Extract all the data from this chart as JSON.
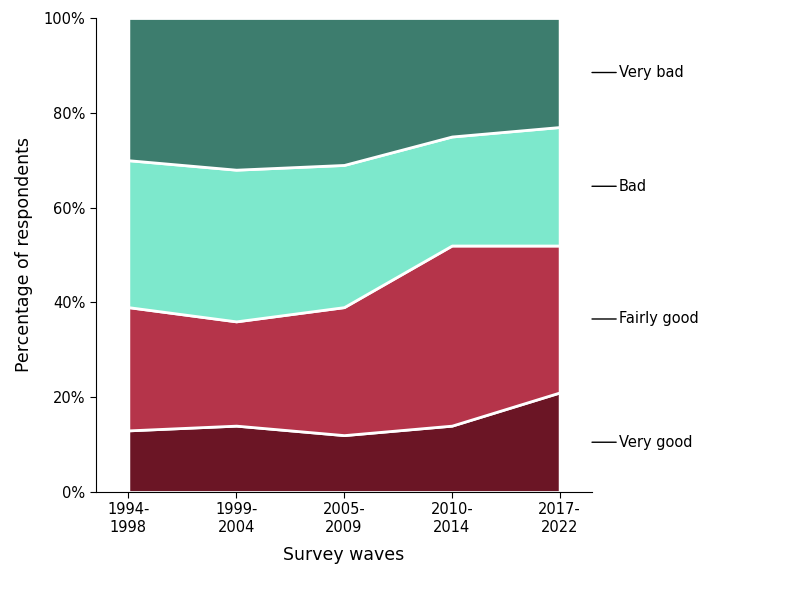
{
  "categories": [
    "1994-\n1998",
    "1999-\n2004",
    "2005-\n2009",
    "2010-\n2014",
    "2017-\n2022"
  ],
  "very_good": [
    13,
    14,
    12,
    14,
    21
  ],
  "fairly_good": [
    26,
    22,
    27,
    38,
    31
  ],
  "bad": [
    31,
    32,
    30,
    23,
    25
  ],
  "very_bad": [
    30,
    32,
    31,
    25,
    23
  ],
  "colors": {
    "very_good": "#6b1525",
    "fairly_good": "#b5344a",
    "bad": "#7de8cc",
    "very_bad": "#3d7d6e"
  },
  "xlabel": "Survey waves",
  "ylabel": "Percentage of respondents",
  "yticks": [
    0,
    20,
    40,
    60,
    80,
    100
  ],
  "ytick_labels": [
    "0%",
    "20%",
    "40%",
    "60%",
    "80%",
    "100%"
  ],
  "label_annotations": [
    {
      "label": "Very good",
      "band": "very_good"
    },
    {
      "label": "Fairly good",
      "band": "fairly_good"
    },
    {
      "label": "Bad",
      "band": "bad"
    },
    {
      "label": "Very bad",
      "band": "very_bad"
    }
  ]
}
